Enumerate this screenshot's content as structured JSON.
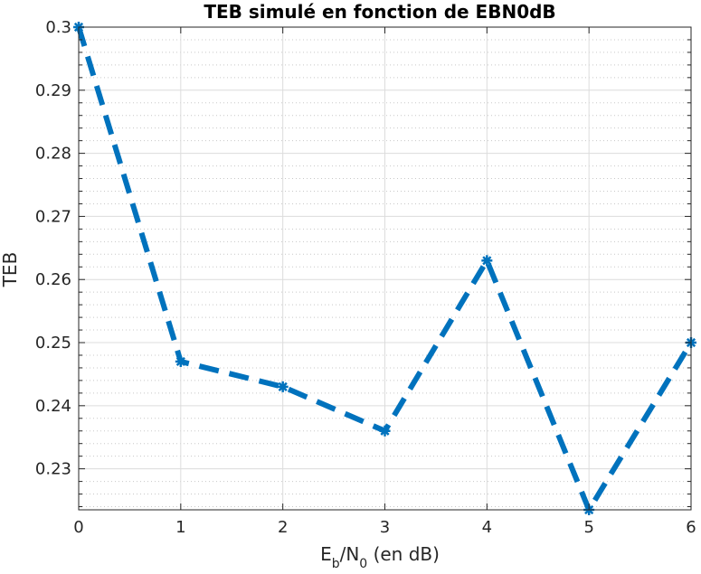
{
  "chart_data": {
    "type": "line",
    "title": "TEB simulé en fonction de EBN0dB",
    "xlabel": {
      "prefix": "E",
      "sub1": "b",
      "mid": "/N",
      "sub2": "0",
      "suffix": " (en dB)"
    },
    "ylabel": "TEB",
    "x": [
      0,
      1,
      2,
      3,
      4,
      5,
      6
    ],
    "series": [
      {
        "values": [
          0.3,
          0.247,
          0.243,
          0.236,
          0.263,
          0.2235,
          0.25
        ],
        "color": "#0072BD",
        "line_style": "dashed",
        "marker": "asterisk"
      }
    ],
    "xlim": [
      0,
      6
    ],
    "ylim": [
      0.2235,
      0.3
    ],
    "xticks": [
      0,
      1,
      2,
      3,
      4,
      5,
      6
    ],
    "xtick_labels": [
      "0",
      "1",
      "2",
      "3",
      "4",
      "5",
      "6"
    ],
    "yticks": [
      0.23,
      0.24,
      0.25,
      0.26,
      0.27,
      0.28,
      0.29,
      0.3
    ],
    "ytick_labels": [
      "0.23",
      "0.24",
      "0.25",
      "0.26",
      "0.27",
      "0.28",
      "0.29",
      "0.3"
    ],
    "yminor_step": 0.002,
    "grid": true,
    "minor_grid": true
  }
}
